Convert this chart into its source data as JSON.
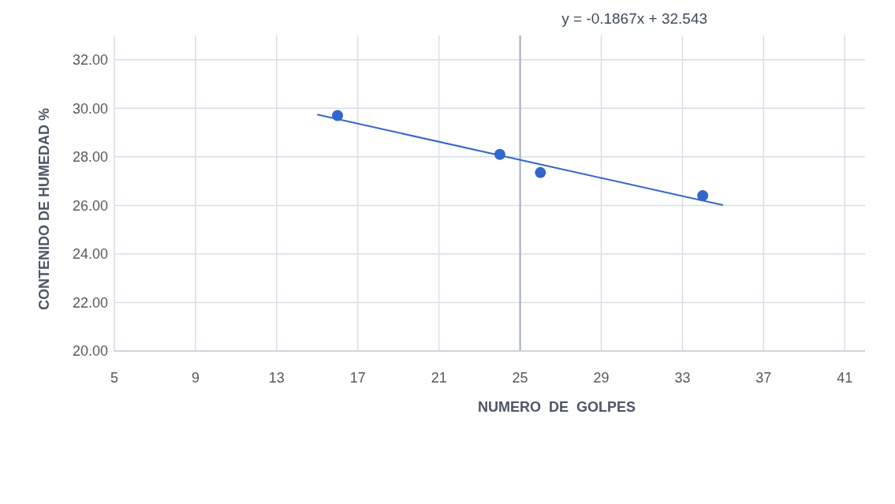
{
  "chart_data": {
    "type": "scatter",
    "xlabel": "NUMERO  DE  GOLPES",
    "ylabel": "CONTENIDO DE HUMEDAD %",
    "series": [
      {
        "color": "#3366cc",
        "x": [
          16,
          24,
          26,
          34
        ],
        "values": [
          29.7,
          28.1,
          27.35,
          26.4
        ]
      },
      {
        "type": "line",
        "color": "#3366cc",
        "x": [
          15,
          35
        ],
        "values": [
          29.74,
          26.01
        ],
        "marker": "none"
      }
    ],
    "annotations": [
      "y = -0.1867x + 32.543"
    ],
    "ref_lines": [
      {
        "axis": "x",
        "value": 25,
        "color": "#a6adbb"
      }
    ],
    "xlim": [
      5,
      42
    ],
    "xticks": [
      5,
      9,
      13,
      17,
      21,
      25,
      29,
      33,
      37,
      41
    ],
    "ylim": [
      20,
      33
    ],
    "yticks": [
      {
        "value": 20,
        "label": "20.00"
      },
      {
        "value": 22,
        "label": "22.00"
      },
      {
        "value": 24,
        "label": "24.00"
      },
      {
        "value": 26,
        "label": "26.00"
      },
      {
        "value": 28,
        "label": "28.00"
      },
      {
        "value": 30,
        "label": "30.00"
      },
      {
        "value": 32,
        "label": "32.00"
      }
    ],
    "grid": true,
    "marker": "circle"
  }
}
